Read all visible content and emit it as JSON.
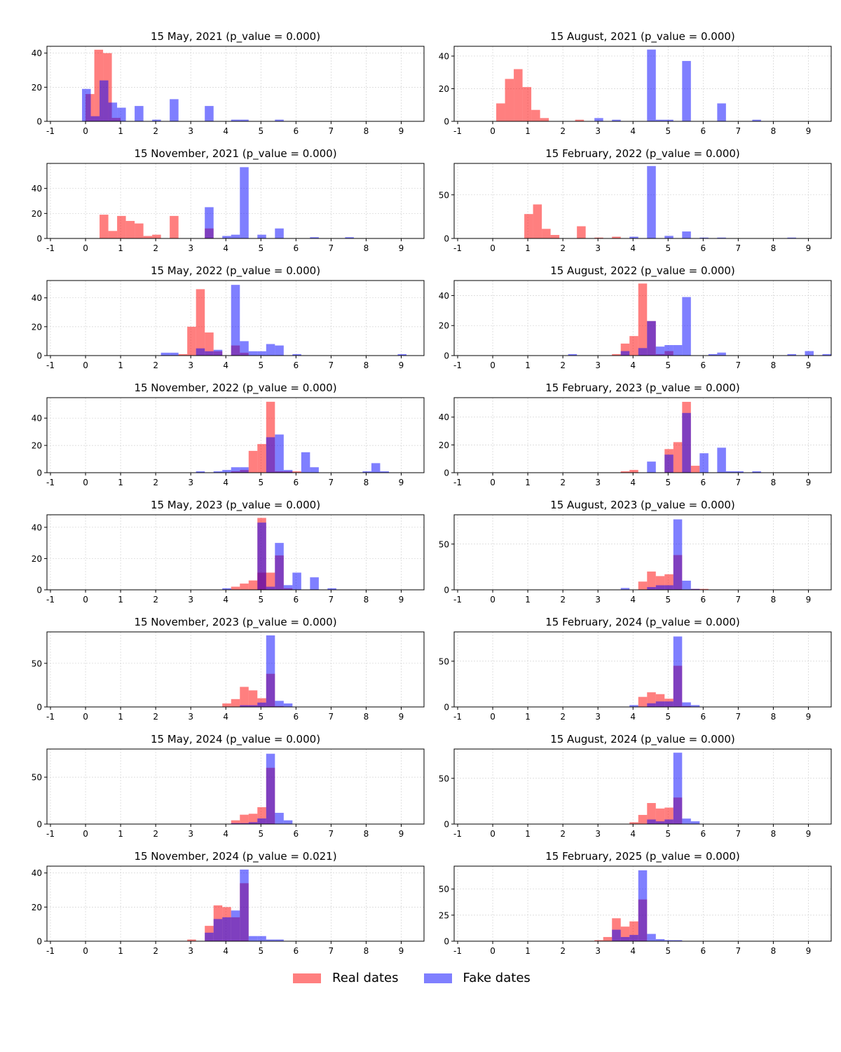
{
  "chart_data": {
    "type": "bar",
    "subtype": "overlaid-histogram-grid",
    "layout": "8 rows x 2 columns",
    "x_ticks": [
      "-1",
      "0",
      "1",
      "2",
      "3",
      "4",
      "5",
      "6",
      "7",
      "8",
      "9"
    ],
    "xlim": [
      -1.1,
      9.65
    ],
    "bin_width": 0.25,
    "grid": true,
    "legend_position": "bottom-center",
    "colors": {
      "real": "#ff7f7f",
      "fake": "#7f7fff",
      "overlap": "#7f3fbf",
      "grid": "#d3d3d3"
    },
    "legend": {
      "real_label": "Real dates",
      "fake_label": "Fake dates"
    },
    "series_names": [
      "Real dates",
      "Fake dates"
    ],
    "panels": [
      {
        "title": "15 May, 2021 (p_value = 0.000)",
        "ylim": [
          0,
          44
        ],
        "yticks": [
          0,
          20,
          40
        ],
        "real": [
          [
            0,
            16
          ],
          [
            0.25,
            42
          ],
          [
            0.5,
            40
          ],
          [
            0.75,
            2
          ]
        ],
        "fake": [
          [
            -0.1,
            19
          ],
          [
            0.15,
            3
          ],
          [
            0.4,
            24
          ],
          [
            0.65,
            11
          ],
          [
            0.9,
            8
          ],
          [
            1.4,
            9
          ],
          [
            1.9,
            1
          ],
          [
            2.4,
            13
          ],
          [
            3.4,
            9
          ],
          [
            4.15,
            1
          ],
          [
            4.4,
            1
          ],
          [
            5.4,
            1
          ]
        ]
      },
      {
        "title": "15 August, 2021 (p_value = 0.000)",
        "ylim": [
          0,
          46
        ],
        "yticks": [
          0,
          20,
          40
        ],
        "real": [
          [
            0.1,
            11
          ],
          [
            0.35,
            26
          ],
          [
            0.6,
            32
          ],
          [
            0.85,
            21
          ],
          [
            1.1,
            7
          ],
          [
            1.35,
            2
          ],
          [
            2.35,
            1
          ]
        ],
        "fake": [
          [
            2.9,
            2
          ],
          [
            3.4,
            1
          ],
          [
            4.4,
            44
          ],
          [
            4.65,
            1
          ],
          [
            4.9,
            1
          ],
          [
            5.4,
            37
          ],
          [
            6.4,
            11
          ],
          [
            7.4,
            1
          ]
        ]
      },
      {
        "title": "15 November, 2021 (p_value = 0.000)",
        "ylim": [
          0,
          60
        ],
        "yticks": [
          0,
          20,
          40
        ],
        "real": [
          [
            0.4,
            19
          ],
          [
            0.65,
            6
          ],
          [
            0.9,
            18
          ],
          [
            1.15,
            14
          ],
          [
            1.4,
            12
          ],
          [
            1.65,
            2
          ],
          [
            1.9,
            3
          ],
          [
            2.4,
            18
          ],
          [
            3.4,
            8
          ]
        ],
        "fake": [
          [
            3.4,
            25
          ],
          [
            3.9,
            2
          ],
          [
            4.15,
            3
          ],
          [
            4.4,
            57
          ],
          [
            4.9,
            3
          ],
          [
            5.4,
            8
          ],
          [
            6.4,
            1
          ],
          [
            7.4,
            1
          ]
        ]
      },
      {
        "title": "15 February, 2022 (p_value = 0.000)",
        "ylim": [
          0,
          86
        ],
        "yticks": [
          0,
          50
        ],
        "real": [
          [
            0.9,
            28
          ],
          [
            1.15,
            39
          ],
          [
            1.4,
            11
          ],
          [
            1.65,
            4
          ],
          [
            2.4,
            14
          ],
          [
            2.9,
            1
          ],
          [
            3.4,
            2
          ]
        ],
        "fake": [
          [
            3.9,
            2
          ],
          [
            4.4,
            83
          ],
          [
            4.9,
            3
          ],
          [
            5.4,
            8
          ],
          [
            5.9,
            1
          ],
          [
            6.4,
            1
          ],
          [
            8.4,
            1
          ]
        ]
      },
      {
        "title": "15 May, 2022 (p_value = 0.000)",
        "ylim": [
          0,
          52
        ],
        "yticks": [
          0,
          20,
          40
        ],
        "real": [
          [
            2.65,
            1
          ],
          [
            2.9,
            20
          ],
          [
            3.15,
            46
          ],
          [
            3.4,
            16
          ],
          [
            3.65,
            3
          ],
          [
            4.15,
            7
          ],
          [
            4.4,
            2
          ]
        ],
        "fake": [
          [
            2.15,
            2
          ],
          [
            2.4,
            2
          ],
          [
            3.15,
            5
          ],
          [
            3.4,
            3
          ],
          [
            3.65,
            4
          ],
          [
            4.15,
            49
          ],
          [
            4.4,
            10
          ],
          [
            4.65,
            3
          ],
          [
            4.9,
            3
          ],
          [
            5.15,
            8
          ],
          [
            5.4,
            7
          ],
          [
            5.9,
            1
          ],
          [
            8.9,
            1
          ]
        ]
      },
      {
        "title": "15 August, 2022 (p_value = 0.000)",
        "ylim": [
          0,
          50
        ],
        "yticks": [
          0,
          20,
          40
        ],
        "real": [
          [
            3.4,
            1
          ],
          [
            3.65,
            8
          ],
          [
            3.9,
            13
          ],
          [
            4.15,
            48
          ],
          [
            4.4,
            23
          ],
          [
            4.65,
            1
          ],
          [
            4.9,
            3
          ]
        ],
        "fake": [
          [
            2.15,
            1
          ],
          [
            3.65,
            3
          ],
          [
            4.15,
            5
          ],
          [
            4.4,
            23
          ],
          [
            4.65,
            6
          ],
          [
            4.9,
            7
          ],
          [
            5.15,
            7
          ],
          [
            5.4,
            39
          ],
          [
            6.15,
            1
          ],
          [
            6.4,
            2
          ],
          [
            8.4,
            1
          ],
          [
            8.9,
            3
          ],
          [
            9.4,
            1
          ]
        ]
      },
      {
        "title": "15 November, 2022 (p_value = 0.000)",
        "ylim": [
          0,
          55
        ],
        "yticks": [
          0,
          20,
          40
        ],
        "real": [
          [
            4.15,
            1
          ],
          [
            4.4,
            2
          ],
          [
            4.65,
            16
          ],
          [
            4.9,
            21
          ],
          [
            5.15,
            52
          ],
          [
            5.4,
            1
          ],
          [
            5.65,
            1
          ],
          [
            5.9,
            1
          ]
        ],
        "fake": [
          [
            3.15,
            1
          ],
          [
            3.65,
            1
          ],
          [
            3.9,
            2
          ],
          [
            4.15,
            4
          ],
          [
            4.4,
            4
          ],
          [
            5.15,
            26
          ],
          [
            5.4,
            28
          ],
          [
            5.65,
            2
          ],
          [
            6.15,
            15
          ],
          [
            6.4,
            4
          ],
          [
            7.9,
            1
          ],
          [
            8.15,
            7
          ],
          [
            8.4,
            1
          ]
        ]
      },
      {
        "title": "15 February, 2023 (p_value = 0.000)",
        "ylim": [
          0,
          54
        ],
        "yticks": [
          0,
          20,
          40
        ],
        "real": [
          [
            3.65,
            1
          ],
          [
            3.9,
            2
          ],
          [
            4.9,
            17
          ],
          [
            5.15,
            22
          ],
          [
            5.4,
            51
          ],
          [
            5.65,
            5
          ]
        ],
        "fake": [
          [
            4.4,
            8
          ],
          [
            4.9,
            13
          ],
          [
            5.4,
            43
          ],
          [
            5.9,
            14
          ],
          [
            6.4,
            18
          ],
          [
            6.65,
            1
          ],
          [
            6.9,
            1
          ],
          [
            7.4,
            1
          ]
        ]
      },
      {
        "title": "15 May, 2023 (p_value = 0.000)",
        "ylim": [
          0,
          48
        ],
        "yticks": [
          0,
          20,
          40
        ],
        "real": [
          [
            4.15,
            2
          ],
          [
            4.4,
            4
          ],
          [
            4.65,
            6
          ],
          [
            4.9,
            11
          ],
          [
            4.9,
            46
          ],
          [
            5.15,
            11
          ],
          [
            5.4,
            22
          ],
          [
            5.65,
            1
          ]
        ],
        "fake": [
          [
            3.9,
            1
          ],
          [
            4.9,
            43
          ],
          [
            5.15,
            2
          ],
          [
            5.4,
            30
          ],
          [
            5.65,
            3
          ],
          [
            5.9,
            11
          ],
          [
            6.4,
            8
          ],
          [
            6.9,
            1
          ]
        ]
      },
      {
        "title": "15 August, 2023 (p_value = 0.000)",
        "ylim": [
          0,
          82
        ],
        "yticks": [
          0,
          50
        ],
        "real": [
          [
            4.15,
            9
          ],
          [
            4.4,
            20
          ],
          [
            4.65,
            15
          ],
          [
            4.9,
            17
          ],
          [
            5.15,
            38
          ],
          [
            5.65,
            1
          ],
          [
            5.9,
            1
          ]
        ],
        "fake": [
          [
            3.65,
            2
          ],
          [
            4.4,
            3
          ],
          [
            4.65,
            5
          ],
          [
            4.9,
            5
          ],
          [
            5.15,
            77
          ],
          [
            5.4,
            10
          ],
          [
            5.65,
            1
          ]
        ]
      },
      {
        "title": "15 November, 2023 (p_value = 0.000)",
        "ylim": [
          0,
          86
        ],
        "yticks": [
          0,
          50
        ],
        "real": [
          [
            3.9,
            4
          ],
          [
            4.15,
            9
          ],
          [
            4.4,
            23
          ],
          [
            4.65,
            19
          ],
          [
            4.9,
            10
          ],
          [
            5.15,
            38
          ],
          [
            5.4,
            1
          ]
        ],
        "fake": [
          [
            4.4,
            2
          ],
          [
            4.65,
            2
          ],
          [
            4.9,
            5
          ],
          [
            5.15,
            82
          ],
          [
            5.4,
            7
          ],
          [
            5.65,
            4
          ]
        ]
      },
      {
        "title": "15 February, 2024 (p_value = 0.000)",
        "ylim": [
          0,
          82
        ],
        "yticks": [
          0,
          50
        ],
        "real": [
          [
            4.15,
            11
          ],
          [
            4.4,
            16
          ],
          [
            4.65,
            14
          ],
          [
            4.9,
            9
          ],
          [
            5.15,
            45
          ],
          [
            5.4,
            1
          ]
        ],
        "fake": [
          [
            3.9,
            2
          ],
          [
            4.4,
            4
          ],
          [
            4.65,
            6
          ],
          [
            4.9,
            6
          ],
          [
            5.15,
            77
          ],
          [
            5.4,
            5
          ],
          [
            5.65,
            2
          ]
        ]
      },
      {
        "title": "15 May, 2024 (p_value = 0.000)",
        "ylim": [
          0,
          80
        ],
        "yticks": [
          0,
          50
        ],
        "real": [
          [
            4.15,
            4
          ],
          [
            4.4,
            10
          ],
          [
            4.65,
            11
          ],
          [
            4.9,
            18
          ],
          [
            5.15,
            60
          ]
        ],
        "fake": [
          [
            4.15,
            1
          ],
          [
            4.4,
            1
          ],
          [
            4.65,
            2
          ],
          [
            4.9,
            6
          ],
          [
            5.15,
            75
          ],
          [
            5.4,
            12
          ],
          [
            5.65,
            4
          ]
        ]
      },
      {
        "title": "15 August, 2024 (p_value = 0.000)",
        "ylim": [
          0,
          82
        ],
        "yticks": [
          0,
          50
        ],
        "real": [
          [
            3.9,
            2
          ],
          [
            4.15,
            10
          ],
          [
            4.4,
            23
          ],
          [
            4.65,
            17
          ],
          [
            4.9,
            18
          ],
          [
            5.15,
            29
          ]
        ],
        "fake": [
          [
            4.4,
            5
          ],
          [
            4.65,
            3
          ],
          [
            4.9,
            5
          ],
          [
            5.15,
            78
          ],
          [
            5.4,
            6
          ],
          [
            5.65,
            3
          ]
        ]
      },
      {
        "title": "15 November, 2024 (p_value = 0.021)",
        "ylim": [
          0,
          44
        ],
        "yticks": [
          0,
          20,
          40
        ],
        "real": [
          [
            2.9,
            1
          ],
          [
            3.4,
            9
          ],
          [
            3.65,
            21
          ],
          [
            3.9,
            20
          ],
          [
            4.15,
            14
          ],
          [
            4.4,
            34
          ]
        ],
        "fake": [
          [
            3.4,
            5
          ],
          [
            3.65,
            13
          ],
          [
            3.9,
            14
          ],
          [
            4.15,
            18
          ],
          [
            4.4,
            42
          ],
          [
            4.65,
            3
          ],
          [
            4.9,
            3
          ],
          [
            5.15,
            1
          ],
          [
            5.4,
            1
          ]
        ]
      },
      {
        "title": "15 February, 2025 (p_value = 0.000)",
        "ylim": [
          0,
          72
        ],
        "yticks": [
          0,
          25,
          50
        ],
        "real": [
          [
            2.9,
            1
          ],
          [
            3.15,
            4
          ],
          [
            3.4,
            22
          ],
          [
            3.65,
            14
          ],
          [
            3.9,
            19
          ],
          [
            4.15,
            40
          ]
        ],
        "fake": [
          [
            3.4,
            11
          ],
          [
            3.65,
            4
          ],
          [
            3.9,
            6
          ],
          [
            4.15,
            68
          ],
          [
            4.4,
            7
          ],
          [
            4.65,
            2
          ],
          [
            4.9,
            1
          ],
          [
            5.15,
            1
          ]
        ]
      }
    ]
  }
}
